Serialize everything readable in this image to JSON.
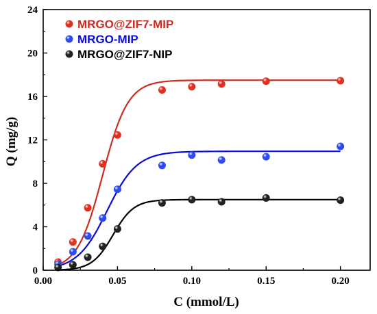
{
  "chart_data": {
    "type": "scatter",
    "xlabel": "C (mmol/L)",
    "ylabel": "Q (mg/g)",
    "xlim": [
      0.0,
      0.22
    ],
    "ylim": [
      0,
      24
    ],
    "xticks": [
      "0.00",
      "0.05",
      "0.10",
      "0.15",
      "0.20"
    ],
    "xtick_values": [
      0.0,
      0.05,
      0.1,
      0.15,
      0.2
    ],
    "yticks": [
      "0",
      "4",
      "8",
      "12",
      "16",
      "20",
      "24"
    ],
    "ytick_values": [
      0,
      4,
      8,
      12,
      16,
      20,
      24
    ],
    "grid": false,
    "legend_position": "top-left",
    "series": [
      {
        "name": "MRGO@ZIF7-MIP",
        "color": "#cc2b1f",
        "marker_color": "#e03020",
        "x": [
          0.01,
          0.02,
          0.03,
          0.04,
          0.05,
          0.08,
          0.1,
          0.12,
          0.15,
          0.2
        ],
        "y": [
          0.75,
          2.6,
          5.75,
          9.8,
          12.45,
          16.6,
          16.9,
          17.15,
          17.4,
          17.45
        ],
        "fit": {
          "qmax": 17.5,
          "c50": 0.04,
          "k": 0.0085
        }
      },
      {
        "name": "MRGO-MIP",
        "color": "#0a0ad8",
        "marker_color": "#2f4bf0",
        "x": [
          0.01,
          0.02,
          0.03,
          0.04,
          0.05,
          0.08,
          0.1,
          0.12,
          0.15,
          0.2
        ],
        "y": [
          0.55,
          1.7,
          3.15,
          4.8,
          7.45,
          9.65,
          10.6,
          10.15,
          10.45,
          11.4
        ],
        "fit": {
          "qmax": 10.95,
          "c50": 0.043,
          "k": 0.01
        }
      },
      {
        "name": "MRGO@ZIF7-NIP",
        "color": "#000000",
        "marker_color": "#222222",
        "x": [
          0.01,
          0.02,
          0.03,
          0.04,
          0.05,
          0.08,
          0.1,
          0.12,
          0.15,
          0.2
        ],
        "y": [
          0.25,
          0.5,
          1.2,
          2.2,
          3.8,
          6.2,
          6.5,
          6.3,
          6.65,
          6.45
        ],
        "fit": {
          "qmax": 6.5,
          "c50": 0.047,
          "k": 0.007
        }
      }
    ]
  }
}
